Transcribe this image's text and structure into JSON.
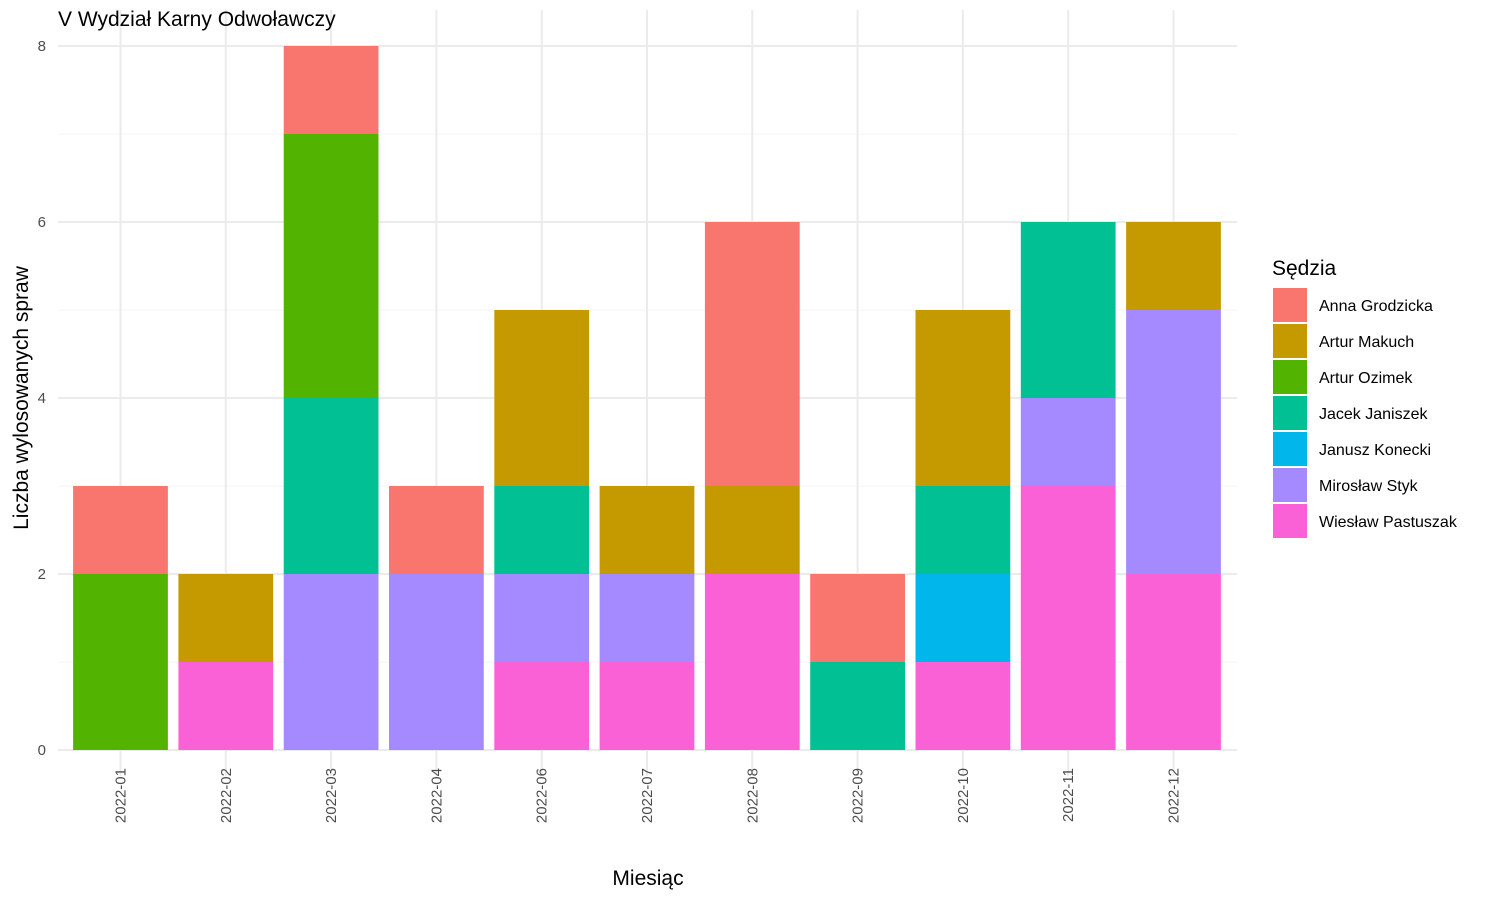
{
  "chart_data": {
    "type": "bar",
    "stacked": true,
    "title": "V Wydział Karny Odwoławczy",
    "xlabel": "Miesiąc",
    "ylabel": "Liczba wylosowanych spraw",
    "ylim": [
      0,
      8
    ],
    "yticks": [
      0,
      2,
      4,
      6,
      8
    ],
    "grid": true,
    "legend_title": "Sędzia",
    "legend_position": "right",
    "categories": [
      "2022-01",
      "2022-02",
      "2022-03",
      "2022-04",
      "2022-06",
      "2022-07",
      "2022-08",
      "2022-09",
      "2022-10",
      "2022-11",
      "2022-12"
    ],
    "series": [
      {
        "name": "Anna Grodzicka",
        "color": "#F8766D",
        "values": [
          1,
          0,
          1,
          1,
          0,
          0,
          3,
          1,
          0,
          0,
          0
        ]
      },
      {
        "name": "Artur Makuch",
        "color": "#C49A00",
        "values": [
          0,
          1,
          0,
          0,
          2,
          1,
          1,
          0,
          2,
          0,
          1
        ]
      },
      {
        "name": "Artur Ozimek",
        "color": "#53B400",
        "values": [
          2,
          0,
          3,
          0,
          0,
          0,
          0,
          0,
          0,
          0,
          0
        ]
      },
      {
        "name": "Jacek Janiszek",
        "color": "#00C094",
        "values": [
          0,
          0,
          2,
          0,
          1,
          0,
          0,
          1,
          1,
          2,
          0
        ]
      },
      {
        "name": "Janusz Konecki",
        "color": "#00B6EB",
        "values": [
          0,
          0,
          0,
          0,
          0,
          0,
          0,
          0,
          1,
          0,
          0
        ]
      },
      {
        "name": "Mirosław Styk",
        "color": "#A58AFF",
        "values": [
          0,
          0,
          2,
          2,
          1,
          1,
          0,
          0,
          0,
          1,
          3
        ]
      },
      {
        "name": "Wiesław Pastuszak",
        "color": "#FB61D7",
        "values": [
          0,
          1,
          0,
          0,
          1,
          1,
          2,
          0,
          1,
          3,
          2
        ]
      }
    ]
  }
}
